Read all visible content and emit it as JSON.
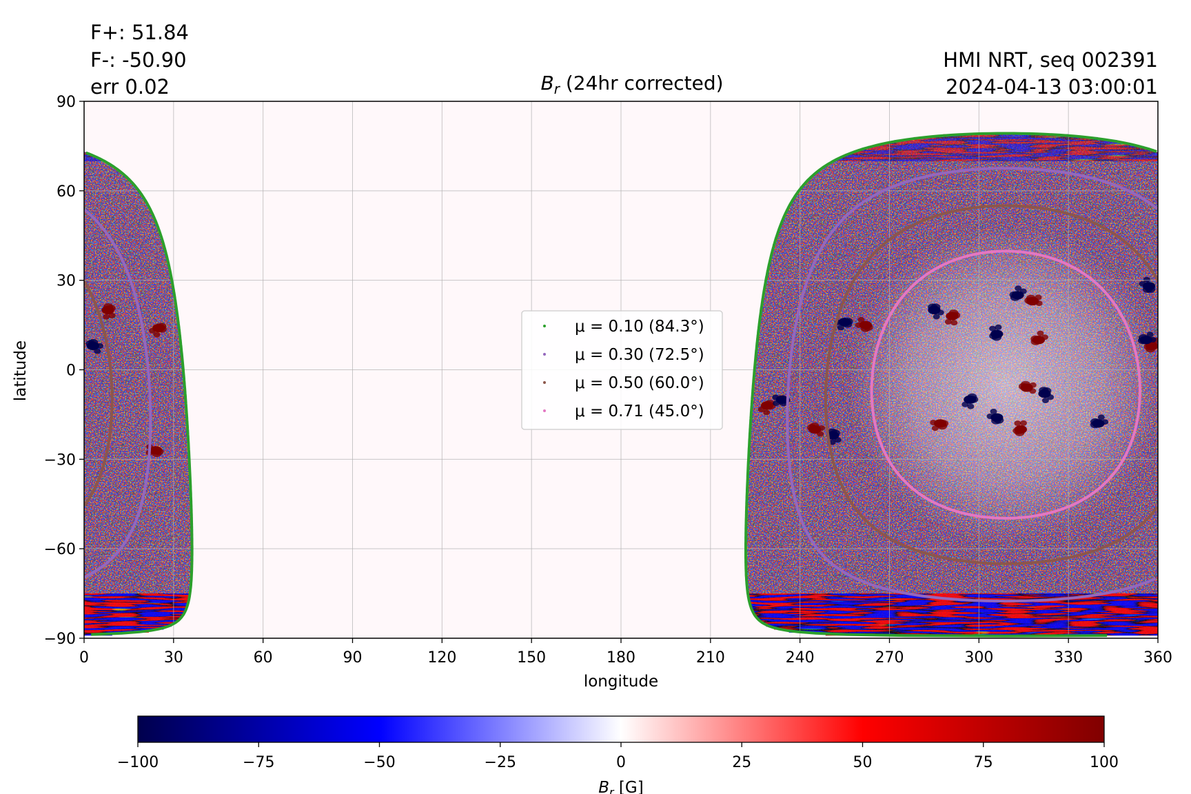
{
  "header": {
    "left_lines": [
      "F+: 51.84",
      "F-: -50.90",
      "err 0.02"
    ],
    "right_lines": [
      "HMI NRT, seq 002391",
      "2024-04-13 03:00:01"
    ]
  },
  "colors": {
    "negative_max": "#00004d",
    "negative": "#0000ff",
    "zero": "#ffffff",
    "positive": "#ff0000",
    "positive_max": "#800000",
    "mu_0_10": "#2ca02c",
    "mu_0_30": "#9467bd",
    "mu_0_50": "#8c564b",
    "mu_0_71": "#e377c2",
    "background": "#fff8fa"
  },
  "chart_data": {
    "type": "heatmap",
    "title": "B_r (24hr corrected)",
    "title_symbol": "B",
    "title_subscript": "r",
    "title_rest": " (24hr corrected)",
    "xlabel": "longitude",
    "ylabel": "latitude",
    "xlim": [
      0,
      360
    ],
    "ylim": [
      -90,
      90
    ],
    "xticks": [
      0,
      30,
      60,
      90,
      120,
      150,
      180,
      210,
      240,
      270,
      300,
      330,
      360
    ],
    "yticks": [
      -90,
      -60,
      -30,
      0,
      30,
      60,
      90
    ],
    "xtick_labels": [
      "0",
      "30",
      "60",
      "90",
      "120",
      "150",
      "180",
      "210",
      "240",
      "270",
      "300",
      "330",
      "360"
    ],
    "ytick_labels": [
      "−90",
      "−60",
      "−30",
      "0",
      "30",
      "60",
      "90"
    ],
    "grid": true,
    "disk_center": {
      "lon": 309,
      "lat": -5
    },
    "legend": {
      "placement": "center",
      "entries": [
        {
          "label": "μ = 0.10 (84.3°)",
          "mu": 0.1,
          "angle_deg": 84.3,
          "color_key": "mu_0_10"
        },
        {
          "label": "μ = 0.30 (72.5°)",
          "mu": 0.3,
          "angle_deg": 72.5,
          "color_key": "mu_0_30"
        },
        {
          "label": "μ = 0.50 (60.0°)",
          "mu": 0.5,
          "angle_deg": 60.0,
          "color_key": "mu_0_50"
        },
        {
          "label": "μ = 0.71 (45.0°)",
          "mu": 0.71,
          "angle_deg": 45.0,
          "color_key": "mu_0_71"
        }
      ]
    },
    "active_regions": [
      {
        "lon": 313,
        "lat": 25,
        "sign": "neg"
      },
      {
        "lon": 318,
        "lat": 23,
        "sign": "pos"
      },
      {
        "lon": 285,
        "lat": 20,
        "sign": "neg"
      },
      {
        "lon": 291,
        "lat": 18,
        "sign": "pos"
      },
      {
        "lon": 255,
        "lat": 16,
        "sign": "neg"
      },
      {
        "lon": 262,
        "lat": 15,
        "sign": "pos"
      },
      {
        "lon": 306,
        "lat": 12,
        "sign": "neg"
      },
      {
        "lon": 320,
        "lat": 10,
        "sign": "pos"
      },
      {
        "lon": 316,
        "lat": -6,
        "sign": "pos"
      },
      {
        "lon": 322,
        "lat": -8,
        "sign": "neg"
      },
      {
        "lon": 297,
        "lat": -10,
        "sign": "neg"
      },
      {
        "lon": 287,
        "lat": -18,
        "sign": "pos"
      },
      {
        "lon": 306,
        "lat": -16,
        "sign": "neg"
      },
      {
        "lon": 314,
        "lat": -20,
        "sign": "pos"
      },
      {
        "lon": 340,
        "lat": -18,
        "sign": "neg"
      },
      {
        "lon": 245,
        "lat": -20,
        "sign": "pos"
      },
      {
        "lon": 251,
        "lat": -22,
        "sign": "neg"
      },
      {
        "lon": 229,
        "lat": -12,
        "sign": "pos"
      },
      {
        "lon": 234,
        "lat": -10,
        "sign": "neg"
      },
      {
        "lon": 357,
        "lat": 28,
        "sign": "neg"
      },
      {
        "lon": 358,
        "lat": 8,
        "sign": "pos"
      },
      {
        "lon": 356,
        "lat": 10,
        "sign": "neg"
      },
      {
        "lon": 3,
        "lat": 8,
        "sign": "neg"
      },
      {
        "lon": 8,
        "lat": 20,
        "sign": "pos"
      },
      {
        "lon": 25,
        "lat": 14,
        "sign": "pos"
      },
      {
        "lon": 24,
        "lat": -27,
        "sign": "pos"
      }
    ],
    "colorbar": {
      "label": "B_r [G]",
      "label_symbol": "B",
      "label_subscript": "r",
      "label_rest": " [G]",
      "min": -100,
      "max": 100,
      "ticks": [
        -100,
        -75,
        -50,
        -25,
        0,
        25,
        50,
        75,
        100
      ],
      "tick_labels": [
        "−100",
        "−75",
        "−50",
        "−25",
        "0",
        "25",
        "50",
        "75",
        "100"
      ]
    }
  }
}
